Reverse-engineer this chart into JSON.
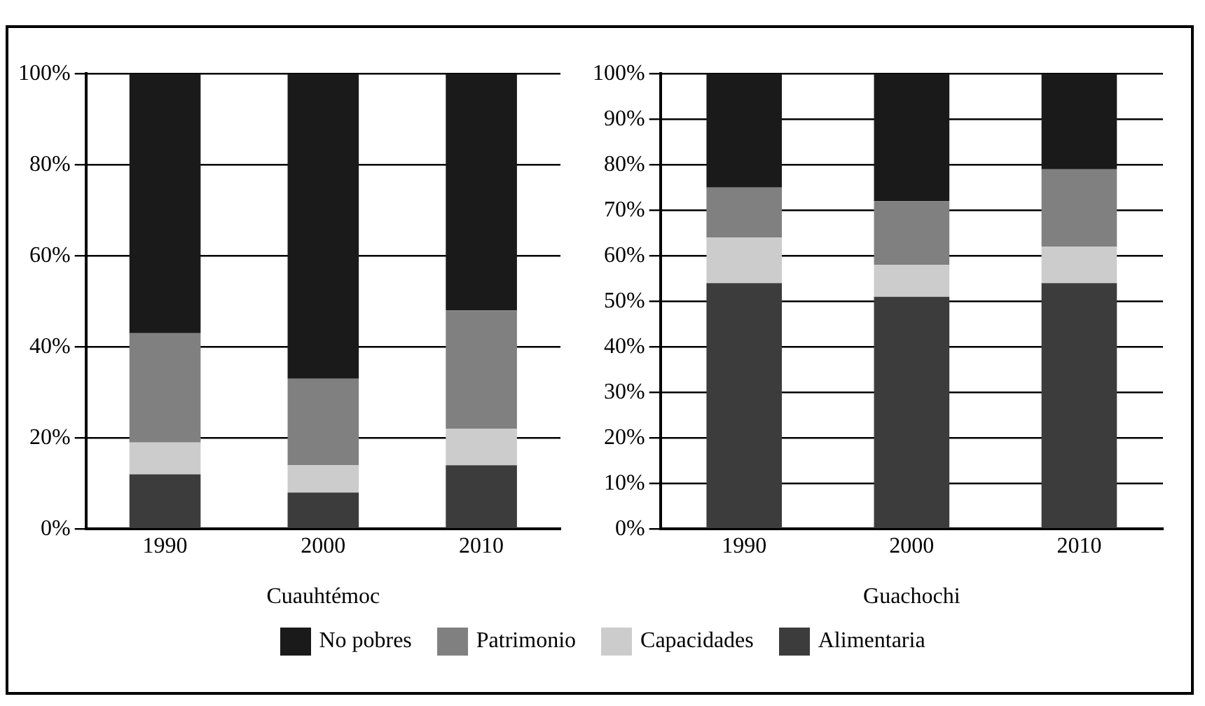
{
  "chart_data": [
    {
      "type": "bar",
      "stacked": true,
      "xlabel": "Cuauhtémoc",
      "categories": [
        "1990",
        "2000",
        "2010"
      ],
      "ylim": [
        0,
        100
      ],
      "yticks": [
        {
          "value": 0,
          "label": "0%"
        },
        {
          "value": 20,
          "label": "20%"
        },
        {
          "value": 40,
          "label": "40%"
        },
        {
          "value": 60,
          "label": "60%"
        },
        {
          "value": 80,
          "label": "80%"
        },
        {
          "value": 100,
          "label": "100%"
        }
      ],
      "grid": "y",
      "legend": "bottom",
      "series": [
        {
          "name": "Alimentaria",
          "color": "#3c3c3c",
          "values": [
            12,
            8,
            14
          ]
        },
        {
          "name": "Capacidades",
          "color": "#cccccc",
          "values": [
            7,
            6,
            8
          ]
        },
        {
          "name": "Patrimonio",
          "color": "#808080",
          "values": [
            24,
            19,
            26
          ]
        },
        {
          "name": "No pobres",
          "color": "#1a1a1a",
          "values": [
            57,
            67,
            52
          ]
        }
      ]
    },
    {
      "type": "bar",
      "stacked": true,
      "xlabel": "Guachochi",
      "categories": [
        "1990",
        "2000",
        "2010"
      ],
      "ylim": [
        0,
        100
      ],
      "yticks": [
        {
          "value": 0,
          "label": "0%"
        },
        {
          "value": 10,
          "label": "10%"
        },
        {
          "value": 20,
          "label": "20%"
        },
        {
          "value": 30,
          "label": "30%"
        },
        {
          "value": 40,
          "label": "40%"
        },
        {
          "value": 50,
          "label": "50%"
        },
        {
          "value": 60,
          "label": "60%"
        },
        {
          "value": 70,
          "label": "70%"
        },
        {
          "value": 80,
          "label": "80%"
        },
        {
          "value": 90,
          "label": "90%"
        },
        {
          "value": 100,
          "label": "100%"
        }
      ],
      "grid": "y",
      "series": [
        {
          "color": "#3c3c3c",
          "values": [
            54,
            51,
            54
          ]
        },
        {
          "color": "#cccccc",
          "values": [
            10,
            7,
            8
          ]
        },
        {
          "color": "#808080",
          "values": [
            11,
            14,
            17
          ]
        },
        {
          "color": "#1a1a1a",
          "values": [
            25,
            28,
            21
          ]
        }
      ]
    }
  ]
}
